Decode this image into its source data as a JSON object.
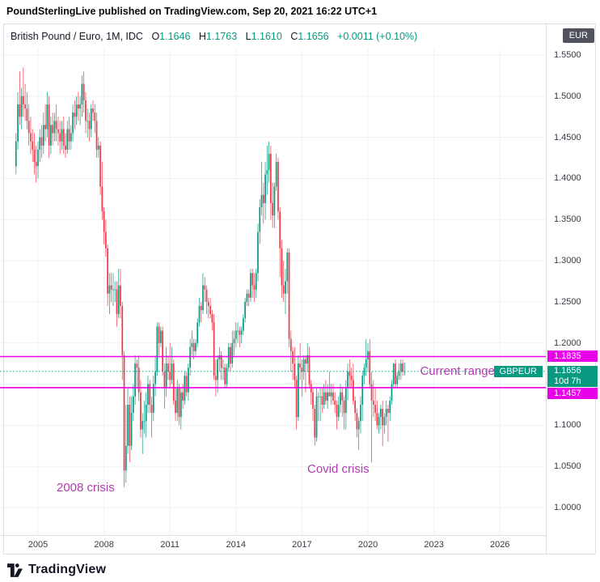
{
  "header": {
    "published_line": "PoundSterlingLive published on TradingView.com, Sep 20, 2021 16:22 UTC+1"
  },
  "legend": {
    "symbol_title": "British Pound / Euro, 1M, IDC",
    "ohlc": {
      "o_label": "O",
      "o": "1.1646",
      "h_label": "H",
      "h": "1.1763",
      "l_label": "L",
      "l": "1.1610",
      "c_label": "C",
      "c": "1.1656",
      "change": "+0.0011 (+0.10%)"
    }
  },
  "price_axis": {
    "unit_button": "EUR",
    "ticks": [
      {
        "label": "1.5500",
        "value": 1.55
      },
      {
        "label": "1.5000",
        "value": 1.5
      },
      {
        "label": "1.4500",
        "value": 1.45
      },
      {
        "label": "1.4000",
        "value": 1.4
      },
      {
        "label": "1.3500",
        "value": 1.35
      },
      {
        "label": "1.3000",
        "value": 1.3
      },
      {
        "label": "1.2500",
        "value": 1.25
      },
      {
        "label": "1.2000",
        "value": 1.2
      },
      {
        "label": "1.1000",
        "value": 1.1
      },
      {
        "label": "1.0500",
        "value": 1.05
      },
      {
        "label": "1.0000",
        "value": 1.0
      }
    ],
    "labels": {
      "upper": {
        "text": "1.1835",
        "value": 1.1835
      },
      "current": {
        "text": "1.1656",
        "value": 1.1656,
        "countdown": "10d 7h"
      },
      "lower": {
        "text": "1.1457",
        "value": 1.1457
      }
    }
  },
  "time_axis": {
    "ticks": [
      {
        "label": "2005",
        "year": 2005
      },
      {
        "label": "2008",
        "year": 2008
      },
      {
        "label": "2011",
        "year": 2011
      },
      {
        "label": "2014",
        "year": 2014
      },
      {
        "label": "2017",
        "year": 2017
      },
      {
        "label": "2020",
        "year": 2020
      },
      {
        "label": "2023",
        "year": 2023
      },
      {
        "label": "2026",
        "year": 2026
      }
    ]
  },
  "annotations": {
    "current_range": "Current range",
    "symbol_tag": "GBPEUR",
    "crisis_2008": "2008 crisis",
    "covid": "Covid crisis"
  },
  "footer": {
    "brand": "TradingView"
  },
  "colors": {
    "up": "#089981",
    "down": "#f23645",
    "teal": "#089981",
    "magenta_line": "#ec00ec",
    "magenta_label_bg": "#e800e8",
    "annotation_text": "#b23ab2",
    "grid": "#eef1f6",
    "axis_text": "#363a45",
    "badge_bg": "#50535e"
  },
  "chart_data": {
    "type": "candlestick",
    "title": "British Pound / Euro, 1M, IDC",
    "symbol": "GBPEUR",
    "interval": "1M",
    "x_start": "2004-01",
    "x_end": "2021-09",
    "x_tick_years": [
      2005,
      2008,
      2011,
      2014,
      2017,
      2020,
      2023,
      2026
    ],
    "y_ticks": [
      1.0,
      1.05,
      1.1,
      1.15,
      1.2,
      1.25,
      1.3,
      1.35,
      1.4,
      1.45,
      1.5,
      1.55
    ],
    "ylim": [
      0.965,
      1.585
    ],
    "levels": {
      "range_high": 1.1835,
      "current": 1.1656,
      "range_low": 1.1457
    },
    "candles": [
      [
        1.415,
        1.455,
        1.405,
        1.445
      ],
      [
        1.445,
        1.505,
        1.435,
        1.49
      ],
      [
        1.49,
        1.53,
        1.465,
        1.475
      ],
      [
        1.475,
        1.51,
        1.46,
        1.5
      ],
      [
        1.5,
        1.535,
        1.475,
        1.49
      ],
      [
        1.49,
        1.515,
        1.47,
        1.485
      ],
      [
        1.485,
        1.505,
        1.46,
        1.47
      ],
      [
        1.47,
        1.49,
        1.44,
        1.455
      ],
      [
        1.455,
        1.475,
        1.43,
        1.445
      ],
      [
        1.445,
        1.46,
        1.42,
        1.435
      ],
      [
        1.435,
        1.455,
        1.405,
        1.42
      ],
      [
        1.42,
        1.44,
        1.395,
        1.415
      ],
      [
        1.415,
        1.445,
        1.4,
        1.435
      ],
      [
        1.435,
        1.46,
        1.42,
        1.45
      ],
      [
        1.45,
        1.465,
        1.425,
        1.44
      ],
      [
        1.44,
        1.48,
        1.43,
        1.465
      ],
      [
        1.465,
        1.49,
        1.445,
        1.46
      ],
      [
        1.46,
        1.505,
        1.45,
        1.49
      ],
      [
        1.49,
        1.5,
        1.425,
        1.44
      ],
      [
        1.44,
        1.475,
        1.43,
        1.465
      ],
      [
        1.465,
        1.48,
        1.44,
        1.455
      ],
      [
        1.455,
        1.48,
        1.445,
        1.47
      ],
      [
        1.47,
        1.49,
        1.445,
        1.46
      ],
      [
        1.46,
        1.475,
        1.44,
        1.455
      ],
      [
        1.455,
        1.47,
        1.43,
        1.445
      ],
      [
        1.445,
        1.47,
        1.435,
        1.46
      ],
      [
        1.46,
        1.475,
        1.43,
        1.44
      ],
      [
        1.44,
        1.455,
        1.425,
        1.435
      ],
      [
        1.435,
        1.47,
        1.43,
        1.46
      ],
      [
        1.46,
        1.475,
        1.435,
        1.445
      ],
      [
        1.445,
        1.465,
        1.435,
        1.455
      ],
      [
        1.455,
        1.49,
        1.445,
        1.48
      ],
      [
        1.48,
        1.495,
        1.46,
        1.475
      ],
      [
        1.475,
        1.5,
        1.465,
        1.49
      ],
      [
        1.49,
        1.505,
        1.47,
        1.485
      ],
      [
        1.485,
        1.5,
        1.465,
        1.49
      ],
      [
        1.49,
        1.525,
        1.475,
        1.515
      ],
      [
        1.515,
        1.53,
        1.48,
        1.495
      ],
      [
        1.495,
        1.505,
        1.455,
        1.47
      ],
      [
        1.47,
        1.485,
        1.45,
        1.47
      ],
      [
        1.47,
        1.48,
        1.445,
        1.46
      ],
      [
        1.46,
        1.49,
        1.45,
        1.485
      ],
      [
        1.485,
        1.495,
        1.47,
        1.48
      ],
      [
        1.48,
        1.49,
        1.455,
        1.47
      ],
      [
        1.47,
        1.48,
        1.425,
        1.435
      ],
      [
        1.435,
        1.45,
        1.425,
        1.44
      ],
      [
        1.44,
        1.445,
        1.38,
        1.39
      ],
      [
        1.39,
        1.42,
        1.35,
        1.36
      ],
      [
        1.36,
        1.365,
        1.32,
        1.335
      ],
      [
        1.335,
        1.35,
        1.305,
        1.315
      ],
      [
        1.315,
        1.32,
        1.245,
        1.26
      ],
      [
        1.26,
        1.285,
        1.235,
        1.27
      ],
      [
        1.27,
        1.285,
        1.25,
        1.265
      ],
      [
        1.265,
        1.285,
        1.245,
        1.265
      ],
      [
        1.265,
        1.275,
        1.25,
        1.265
      ],
      [
        1.265,
        1.275,
        1.22,
        1.235
      ],
      [
        1.235,
        1.29,
        1.23,
        1.27
      ],
      [
        1.27,
        1.29,
        1.23,
        1.245
      ],
      [
        1.245,
        1.25,
        1.155,
        1.185
      ],
      [
        1.185,
        1.19,
        1.025,
        1.045
      ],
      [
        1.045,
        1.125,
        1.03,
        1.075
      ],
      [
        1.075,
        1.145,
        1.065,
        1.125
      ],
      [
        1.125,
        1.135,
        1.055,
        1.075
      ],
      [
        1.075,
        1.135,
        1.07,
        1.115
      ],
      [
        1.115,
        1.15,
        1.105,
        1.135
      ],
      [
        1.135,
        1.185,
        1.125,
        1.175
      ],
      [
        1.175,
        1.18,
        1.145,
        1.17
      ],
      [
        1.17,
        1.185,
        1.13,
        1.14
      ],
      [
        1.14,
        1.155,
        1.085,
        1.095
      ],
      [
        1.095,
        1.115,
        1.065,
        1.105
      ],
      [
        1.105,
        1.13,
        1.09,
        1.105
      ],
      [
        1.105,
        1.14,
        1.085,
        1.125
      ],
      [
        1.125,
        1.16,
        1.115,
        1.15
      ],
      [
        1.15,
        1.155,
        1.115,
        1.125
      ],
      [
        1.125,
        1.135,
        1.085,
        1.115
      ],
      [
        1.115,
        1.16,
        1.105,
        1.15
      ],
      [
        1.15,
        1.185,
        1.135,
        1.165
      ],
      [
        1.165,
        1.225,
        1.16,
        1.22
      ],
      [
        1.22,
        1.225,
        1.185,
        1.2
      ],
      [
        1.2,
        1.22,
        1.195,
        1.215
      ],
      [
        1.215,
        1.22,
        1.16,
        1.165
      ],
      [
        1.165,
        1.175,
        1.12,
        1.145
      ],
      [
        1.145,
        1.195,
        1.135,
        1.175
      ],
      [
        1.175,
        1.185,
        1.155,
        1.165
      ],
      [
        1.165,
        1.2,
        1.145,
        1.155
      ],
      [
        1.155,
        1.195,
        1.15,
        1.175
      ],
      [
        1.175,
        1.18,
        1.125,
        1.13
      ],
      [
        1.13,
        1.145,
        1.105,
        1.115
      ],
      [
        1.115,
        1.155,
        1.105,
        1.145
      ],
      [
        1.145,
        1.15,
        1.1,
        1.11
      ],
      [
        1.11,
        1.145,
        1.095,
        1.14
      ],
      [
        1.14,
        1.15,
        1.12,
        1.13
      ],
      [
        1.13,
        1.165,
        1.125,
        1.16
      ],
      [
        1.16,
        1.165,
        1.135,
        1.14
      ],
      [
        1.14,
        1.175,
        1.13,
        1.17
      ],
      [
        1.17,
        1.205,
        1.16,
        1.195
      ],
      [
        1.195,
        1.215,
        1.185,
        1.2
      ],
      [
        1.2,
        1.205,
        1.18,
        1.19
      ],
      [
        1.19,
        1.205,
        1.185,
        1.2
      ],
      [
        1.2,
        1.23,
        1.195,
        1.225
      ],
      [
        1.225,
        1.255,
        1.22,
        1.245
      ],
      [
        1.245,
        1.25,
        1.225,
        1.24
      ],
      [
        1.24,
        1.285,
        1.235,
        1.27
      ],
      [
        1.27,
        1.28,
        1.25,
        1.265
      ],
      [
        1.265,
        1.27,
        1.235,
        1.25
      ],
      [
        1.25,
        1.255,
        1.23,
        1.245
      ],
      [
        1.245,
        1.255,
        1.23,
        1.235
      ],
      [
        1.235,
        1.24,
        1.215,
        1.225
      ],
      [
        1.225,
        1.235,
        1.155,
        1.16
      ],
      [
        1.16,
        1.18,
        1.135,
        1.155
      ],
      [
        1.155,
        1.185,
        1.14,
        1.18
      ],
      [
        1.18,
        1.195,
        1.165,
        1.185
      ],
      [
        1.185,
        1.19,
        1.155,
        1.17
      ],
      [
        1.17,
        1.18,
        1.155,
        1.17
      ],
      [
        1.17,
        1.175,
        1.145,
        1.15
      ],
      [
        1.15,
        1.175,
        1.145,
        1.17
      ],
      [
        1.17,
        1.2,
        1.165,
        1.195
      ],
      [
        1.195,
        1.2,
        1.165,
        1.175
      ],
      [
        1.175,
        1.215,
        1.17,
        1.2
      ],
      [
        1.2,
        1.215,
        1.185,
        1.205
      ],
      [
        1.205,
        1.225,
        1.195,
        1.215
      ],
      [
        1.215,
        1.225,
        1.2,
        1.215
      ],
      [
        1.215,
        1.22,
        1.195,
        1.21
      ],
      [
        1.21,
        1.22,
        1.2,
        1.215
      ],
      [
        1.215,
        1.235,
        1.21,
        1.23
      ],
      [
        1.23,
        1.255,
        1.225,
        1.25
      ],
      [
        1.25,
        1.265,
        1.245,
        1.26
      ],
      [
        1.26,
        1.265,
        1.245,
        1.255
      ],
      [
        1.255,
        1.29,
        1.25,
        1.285
      ],
      [
        1.285,
        1.29,
        1.255,
        1.27
      ],
      [
        1.27,
        1.285,
        1.25,
        1.265
      ],
      [
        1.265,
        1.29,
        1.255,
        1.285
      ],
      [
        1.285,
        1.345,
        1.275,
        1.335
      ],
      [
        1.335,
        1.375,
        1.32,
        1.365
      ],
      [
        1.365,
        1.42,
        1.355,
        1.38
      ],
      [
        1.38,
        1.395,
        1.345,
        1.37
      ],
      [
        1.37,
        1.42,
        1.35,
        1.405
      ],
      [
        1.405,
        1.44,
        1.38,
        1.41
      ],
      [
        1.41,
        1.445,
        1.395,
        1.43
      ],
      [
        1.43,
        1.44,
        1.35,
        1.37
      ],
      [
        1.37,
        1.395,
        1.34,
        1.355
      ],
      [
        1.355,
        1.395,
        1.34,
        1.39
      ],
      [
        1.39,
        1.43,
        1.385,
        1.42
      ],
      [
        1.42,
        1.425,
        1.35,
        1.36
      ],
      [
        1.36,
        1.365,
        1.28,
        1.315
      ],
      [
        1.315,
        1.325,
        1.255,
        1.27
      ],
      [
        1.27,
        1.3,
        1.25,
        1.26
      ],
      [
        1.26,
        1.29,
        1.235,
        1.275
      ],
      [
        1.275,
        1.315,
        1.26,
        1.31
      ],
      [
        1.31,
        1.315,
        1.195,
        1.205
      ],
      [
        1.205,
        1.215,
        1.165,
        1.19
      ],
      [
        1.19,
        1.195,
        1.155,
        1.175
      ],
      [
        1.175,
        1.195,
        1.145,
        1.155
      ],
      [
        1.155,
        1.16,
        1.095,
        1.11
      ],
      [
        1.11,
        1.185,
        1.105,
        1.175
      ],
      [
        1.175,
        1.2,
        1.155,
        1.17
      ],
      [
        1.17,
        1.18,
        1.135,
        1.165
      ],
      [
        1.165,
        1.185,
        1.155,
        1.18
      ],
      [
        1.18,
        1.185,
        1.14,
        1.175
      ],
      [
        1.175,
        1.2,
        1.165,
        1.185
      ],
      [
        1.185,
        1.195,
        1.145,
        1.15
      ],
      [
        1.15,
        1.155,
        1.125,
        1.14
      ],
      [
        1.14,
        1.145,
        1.105,
        1.12
      ],
      [
        1.12,
        1.125,
        1.075,
        1.085
      ],
      [
        1.085,
        1.145,
        1.08,
        1.135
      ],
      [
        1.135,
        1.14,
        1.105,
        1.135
      ],
      [
        1.135,
        1.145,
        1.105,
        1.135
      ],
      [
        1.135,
        1.145,
        1.115,
        1.125
      ],
      [
        1.125,
        1.15,
        1.12,
        1.14
      ],
      [
        1.14,
        1.155,
        1.125,
        1.13
      ],
      [
        1.13,
        1.15,
        1.12,
        1.14
      ],
      [
        1.14,
        1.165,
        1.135,
        1.135
      ],
      [
        1.135,
        1.15,
        1.125,
        1.14
      ],
      [
        1.14,
        1.15,
        1.125,
        1.13
      ],
      [
        1.13,
        1.14,
        1.115,
        1.125
      ],
      [
        1.125,
        1.13,
        1.095,
        1.11
      ],
      [
        1.11,
        1.135,
        1.105,
        1.125
      ],
      [
        1.125,
        1.15,
        1.115,
        1.14
      ],
      [
        1.14,
        1.145,
        1.11,
        1.13
      ],
      [
        1.13,
        1.135,
        1.095,
        1.115
      ],
      [
        1.115,
        1.155,
        1.095,
        1.145
      ],
      [
        1.145,
        1.175,
        1.13,
        1.165
      ],
      [
        1.165,
        1.18,
        1.145,
        1.16
      ],
      [
        1.16,
        1.17,
        1.145,
        1.155
      ],
      [
        1.155,
        1.175,
        1.125,
        1.13
      ],
      [
        1.13,
        1.135,
        1.105,
        1.115
      ],
      [
        1.115,
        1.12,
        1.085,
        1.095
      ],
      [
        1.095,
        1.11,
        1.07,
        1.105
      ],
      [
        1.105,
        1.135,
        1.09,
        1.125
      ],
      [
        1.125,
        1.165,
        1.105,
        1.16
      ],
      [
        1.16,
        1.175,
        1.15,
        1.17
      ],
      [
        1.17,
        1.205,
        1.16,
        1.18
      ],
      [
        1.18,
        1.2,
        1.165,
        1.19
      ],
      [
        1.19,
        1.205,
        1.145,
        1.15
      ],
      [
        1.15,
        1.165,
        1.055,
        1.13
      ],
      [
        1.13,
        1.155,
        1.11,
        1.125
      ],
      [
        1.125,
        1.145,
        1.105,
        1.115
      ],
      [
        1.115,
        1.13,
        1.095,
        1.1
      ],
      [
        1.1,
        1.115,
        1.09,
        1.11
      ],
      [
        1.11,
        1.125,
        1.095,
        1.12
      ],
      [
        1.12,
        1.13,
        1.075,
        1.1
      ],
      [
        1.1,
        1.115,
        1.09,
        1.11
      ],
      [
        1.11,
        1.13,
        1.1,
        1.12
      ],
      [
        1.12,
        1.125,
        1.08,
        1.115
      ],
      [
        1.115,
        1.135,
        1.105,
        1.13
      ],
      [
        1.13,
        1.155,
        1.125,
        1.15
      ],
      [
        1.15,
        1.175,
        1.145,
        1.175
      ],
      [
        1.175,
        1.18,
        1.145,
        1.15
      ],
      [
        1.15,
        1.165,
        1.145,
        1.16
      ],
      [
        1.16,
        1.175,
        1.155,
        1.165
      ],
      [
        1.165,
        1.18,
        1.155,
        1.175
      ],
      [
        1.175,
        1.18,
        1.16,
        1.165
      ],
      [
        1.1646,
        1.1763,
        1.161,
        1.1656
      ]
    ]
  }
}
